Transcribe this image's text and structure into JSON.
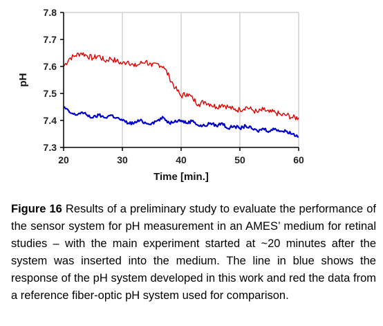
{
  "chart_data": {
    "type": "line",
    "xlabel": "Time [min.]",
    "ylabel": "pH",
    "xlim": [
      20,
      60
    ],
    "ylim": [
      7.3,
      7.8
    ],
    "xticks": [
      "20",
      "30",
      "40",
      "50",
      "60"
    ],
    "yticks": [
      "7.3",
      "7.4",
      "7.5",
      "7.6",
      "7.7",
      "7.8"
    ],
    "grid": "vertical",
    "legend": "none",
    "series": [
      {
        "color": "#e00000",
        "x": [
          20,
          21,
          22,
          23,
          24,
          25,
          26,
          27,
          28,
          29,
          30,
          31,
          32,
          33,
          34,
          35,
          36,
          37,
          38,
          39,
          40,
          41,
          42,
          43,
          44,
          45,
          46,
          47,
          48,
          49,
          50,
          51,
          52,
          53,
          54,
          55,
          56,
          57,
          58,
          59,
          60
        ],
        "y": [
          7.6,
          7.63,
          7.64,
          7.65,
          7.64,
          7.63,
          7.64,
          7.62,
          7.63,
          7.62,
          7.61,
          7.62,
          7.6,
          7.61,
          7.62,
          7.6,
          7.61,
          7.6,
          7.56,
          7.52,
          7.49,
          7.5,
          7.48,
          7.46,
          7.47,
          7.46,
          7.45,
          7.46,
          7.45,
          7.44,
          7.44,
          7.45,
          7.44,
          7.43,
          7.44,
          7.43,
          7.43,
          7.42,
          7.42,
          7.41,
          7.41
        ]
      },
      {
        "color": "#0000cc",
        "x": [
          20,
          21,
          22,
          23,
          24,
          25,
          26,
          27,
          28,
          29,
          30,
          31,
          32,
          33,
          34,
          35,
          36,
          37,
          38,
          39,
          40,
          41,
          42,
          43,
          44,
          45,
          46,
          47,
          48,
          49,
          50,
          51,
          52,
          53,
          54,
          55,
          56,
          57,
          58,
          59,
          60
        ],
        "y": [
          7.45,
          7.43,
          7.42,
          7.43,
          7.42,
          7.41,
          7.42,
          7.41,
          7.42,
          7.41,
          7.4,
          7.39,
          7.39,
          7.4,
          7.39,
          7.39,
          7.4,
          7.41,
          7.39,
          7.4,
          7.4,
          7.39,
          7.4,
          7.38,
          7.38,
          7.39,
          7.38,
          7.39,
          7.37,
          7.38,
          7.37,
          7.38,
          7.37,
          7.36,
          7.37,
          7.36,
          7.37,
          7.36,
          7.36,
          7.35,
          7.34
        ]
      }
    ]
  },
  "caption": {
    "label": "Figure 16",
    "text": " Results of a preliminary study to evaluate the performance of the sensor system for pH measurement in an AMES’ medium for retinal studies – with the main experiment started at ~20 minutes after the system was inserted into the medium.  The line in blue shows the response of the pH system developed in this work and red the data from a reference fiber-optic pH system used for comparison."
  }
}
